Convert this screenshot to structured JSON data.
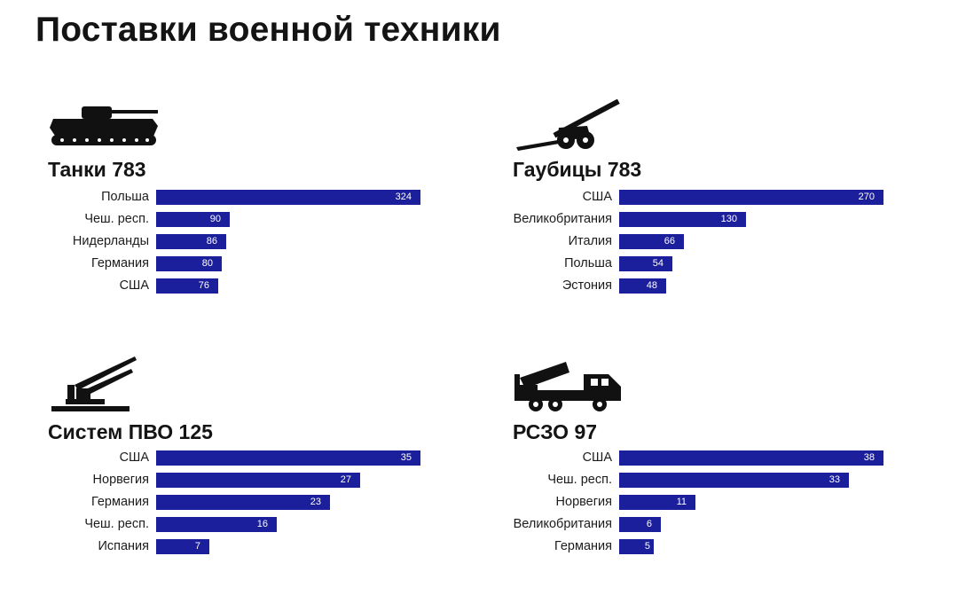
{
  "title": "Поставки военной техники",
  "colors": {
    "bar": "#1b1f9c",
    "bar_text": "#ffffff",
    "text": "#141414"
  },
  "chart_data": [
    {
      "type": "bar",
      "orientation": "horizontal",
      "icon": "tank-icon",
      "title": "Танки 783",
      "categories": [
        "Польша",
        "Чеш. респ.",
        "Нидерланды",
        "Германия",
        "США"
      ],
      "values": [
        324,
        90,
        86,
        80,
        76
      ],
      "xlim": [
        0,
        324
      ]
    },
    {
      "type": "bar",
      "orientation": "horizontal",
      "icon": "howitzer-icon",
      "title": "Гаубицы 783",
      "categories": [
        "США",
        "Великобритания",
        "Италия",
        "Польша",
        "Эстония"
      ],
      "values": [
        270,
        130,
        66,
        54,
        48
      ],
      "xlim": [
        0,
        270
      ]
    },
    {
      "type": "bar",
      "orientation": "horizontal",
      "icon": "air-defense-icon",
      "title": "Систем ПВО 125",
      "categories": [
        "США",
        "Норвегия",
        "Германия",
        "Чеш. респ.",
        "Испания"
      ],
      "values": [
        35,
        27,
        23,
        16,
        7
      ],
      "xlim": [
        0,
        35
      ]
    },
    {
      "type": "bar",
      "orientation": "horizontal",
      "icon": "mlrs-truck-icon",
      "title": "РСЗО 97",
      "categories": [
        "США",
        "Чеш. респ.",
        "Норвегия",
        "Великобритания",
        "Германия"
      ],
      "values": [
        38,
        33,
        11,
        6,
        5
      ],
      "xlim": [
        0,
        38
      ]
    }
  ]
}
